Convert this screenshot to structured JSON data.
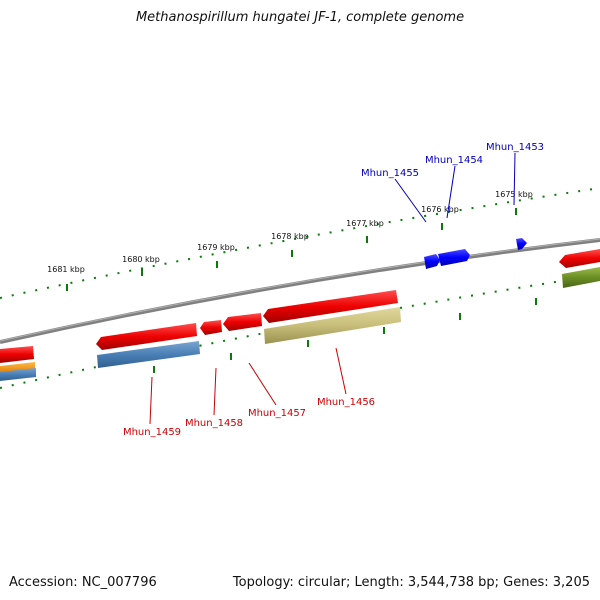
{
  "title": "Methanospirillum hungatei JF-1, complete genome",
  "footer": {
    "accession": "Accession: NC_007796",
    "topology": "Topology: circular; Length: 3,544,738 bp; Genes: 3,205"
  },
  "scale": {
    "ticks": [
      "1681 kbp",
      "1680 kbp",
      "1679 kbp",
      "1678 kbp",
      "1677 kbp",
      "1676 kbp",
      "1675 kbp"
    ]
  },
  "colors": {
    "forward_strand_labels": "#0000bb",
    "reverse_strand_labels": "#cc0000",
    "backbone": "#808080",
    "tick_marks": "#0a7a0a",
    "cds_forward": "#0000ff",
    "cds_reverse": "#ee0000",
    "feature_blue": "#4a7fb5",
    "feature_khaki": "#c8be7a",
    "feature_olive": "#6b8e23",
    "feature_orange": "#ff9900"
  },
  "forward_genes": [
    {
      "locus": "Mhun_1455"
    },
    {
      "locus": "Mhun_1454"
    },
    {
      "locus": "Mhun_1453"
    }
  ],
  "reverse_genes": [
    {
      "locus": "Mhun_1459"
    },
    {
      "locus": "Mhun_1458"
    },
    {
      "locus": "Mhun_1457"
    },
    {
      "locus": "Mhun_1456"
    }
  ]
}
